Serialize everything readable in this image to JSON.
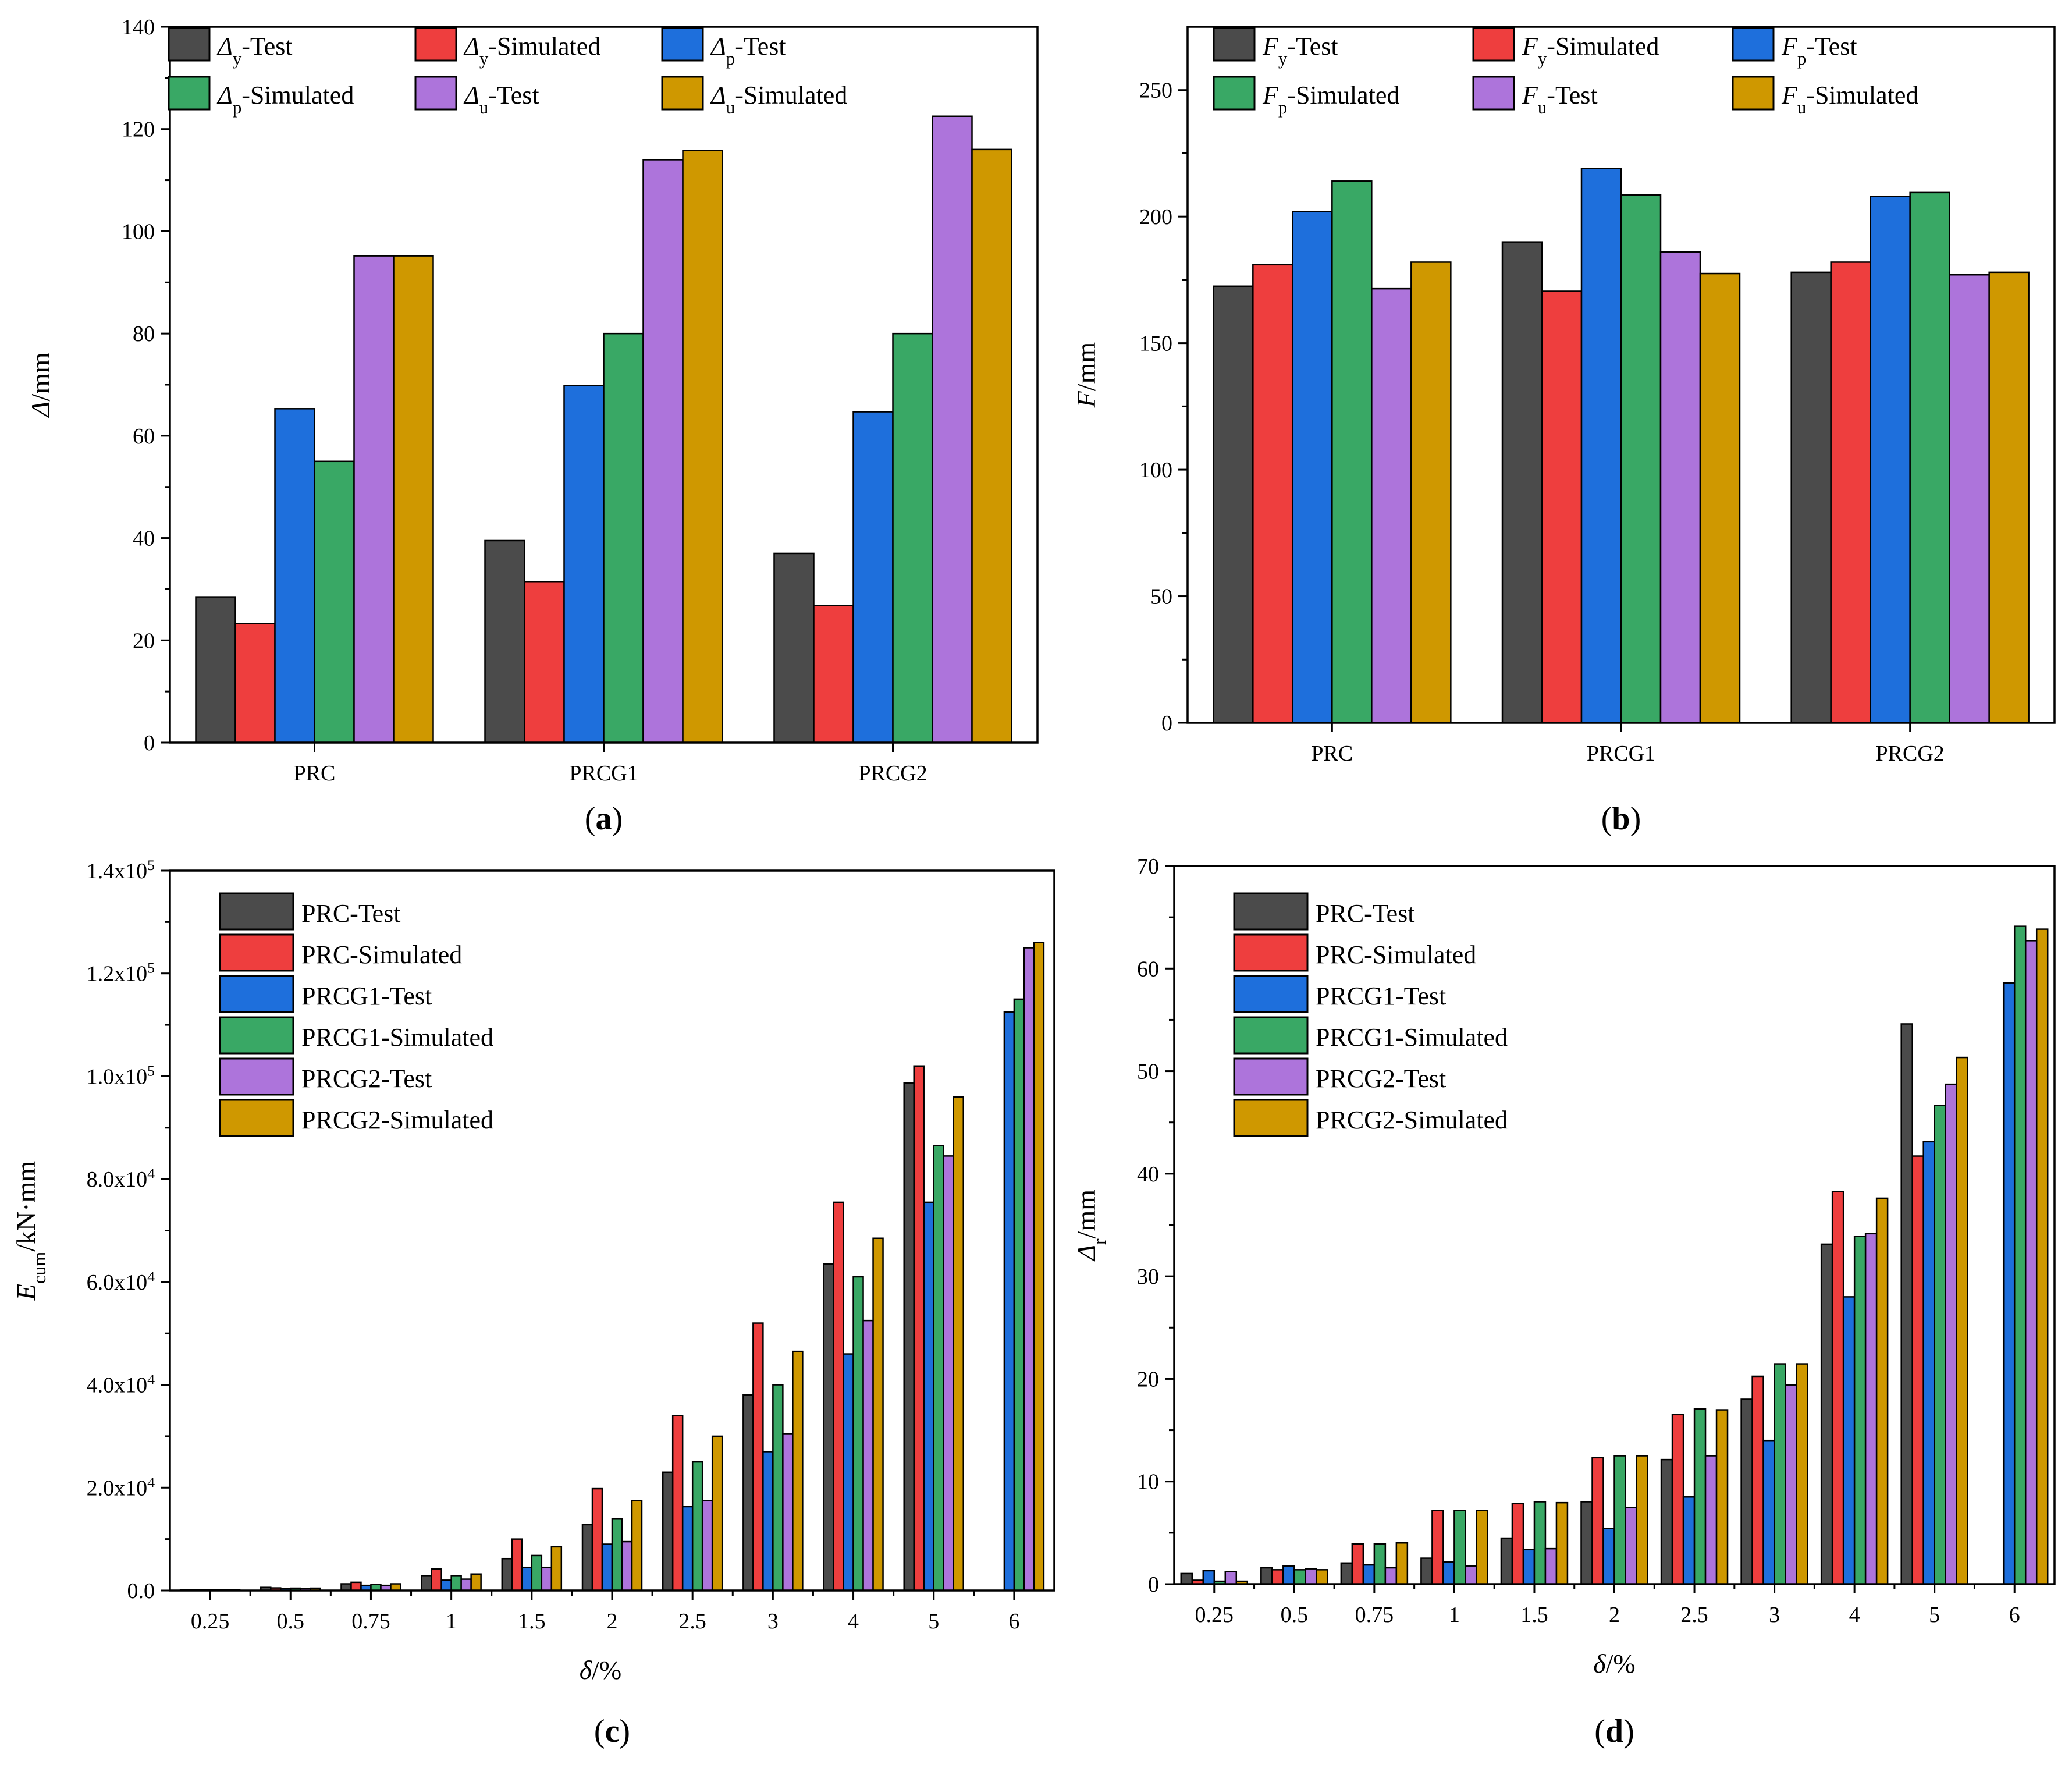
{
  "colors": {
    "dark": "#4b4b4b",
    "red": "#ee3e3e",
    "blue": "#1e6fdc",
    "green": "#39a865",
    "purple": "#ad74db",
    "gold": "#cf9800"
  },
  "chart_data": [
    {
      "type": "bar",
      "panel_label": "(a)",
      "ylabel": "Δ/mm",
      "ylim": [
        0,
        140
      ],
      "yticks": [
        "0",
        "20",
        "40",
        "60",
        "80",
        "100",
        "120",
        "140"
      ],
      "categories": [
        "PRC",
        "PRCG1",
        "PRCG2"
      ],
      "legend_position": "top",
      "series": [
        {
          "name": "Δy-Test",
          "values": [
            28.5,
            39.5,
            37
          ]
        },
        {
          "name": "Δy-Simulated",
          "values": [
            23.3,
            31.5,
            26.8
          ]
        },
        {
          "name": "Δp-Test",
          "values": [
            65.3,
            69.8,
            64.7
          ]
        },
        {
          "name": "Δp-Simulated",
          "values": [
            55,
            80,
            80
          ]
        },
        {
          "name": "Δu-Test",
          "values": [
            95.2,
            114,
            122.5
          ]
        },
        {
          "name": "Δu-Simulated",
          "values": [
            95.2,
            115.8,
            116
          ]
        }
      ]
    },
    {
      "type": "bar",
      "panel_label": "(b)",
      "ylabel": "F/mm",
      "ylim": [
        0,
        275
      ],
      "yticks": [
        "0",
        "50",
        "100",
        "150",
        "200",
        "250"
      ],
      "categories": [
        "PRC",
        "PRCG1",
        "PRCG2"
      ],
      "legend_position": "top",
      "series": [
        {
          "name": "Fy-Test",
          "values": [
            172.5,
            190,
            178
          ]
        },
        {
          "name": "Fy-Simulated",
          "values": [
            181,
            170.5,
            182
          ]
        },
        {
          "name": "Fp-Test",
          "values": [
            202,
            219,
            208
          ]
        },
        {
          "name": "Fp-Simulated",
          "values": [
            214,
            208.5,
            209.5
          ]
        },
        {
          "name": "Fu-Test",
          "values": [
            171.5,
            186,
            177
          ]
        },
        {
          "name": "Fu-Simulated",
          "values": [
            182,
            177.5,
            178
          ]
        }
      ]
    },
    {
      "type": "bar",
      "panel_label": "(c)",
      "xlabel": "δ/%",
      "ylabel": "Ecum/kN·mm",
      "ylim": [
        0,
        140000
      ],
      "yticks": [
        "0.0",
        "2.0x10^4",
        "4.0x10^4",
        "6.0x10^4",
        "8.0x10^4",
        "1.0x10^5",
        "1.2x10^5",
        "1.4x10^5"
      ],
      "categories": [
        "0.25",
        "0.5",
        "0.75",
        "1",
        "1.5",
        "2",
        "2.5",
        "3",
        "4",
        "5",
        "6"
      ],
      "legend_position": "top-left",
      "series": [
        {
          "name": "PRC-Test",
          "values": [
            150,
            600,
            1300,
            2900,
            6200,
            12800,
            23000,
            38000,
            63500,
            98700,
            null
          ]
        },
        {
          "name": "PRC-Simulated",
          "values": [
            150,
            500,
            1600,
            4200,
            10000,
            19800,
            34000,
            52000,
            75500,
            102000,
            null
          ]
        },
        {
          "name": "PRCG1-Test",
          "values": [
            100,
            350,
            1000,
            2000,
            4500,
            9000,
            16300,
            27000,
            46000,
            75500,
            112500
          ]
        },
        {
          "name": "PRCG1-Simulated",
          "values": [
            150,
            450,
            1200,
            2900,
            6800,
            14000,
            25000,
            40000,
            61000,
            86500,
            115000
          ]
        },
        {
          "name": "PRCG2-Test",
          "values": [
            120,
            400,
            1000,
            2200,
            4500,
            9500,
            17500,
            30500,
            52500,
            84500,
            125000
          ]
        },
        {
          "name": "PRCG2-Simulated",
          "values": [
            150,
            450,
            1300,
            3200,
            8500,
            17500,
            30000,
            46500,
            68500,
            96000,
            126000
          ]
        }
      ]
    },
    {
      "type": "bar",
      "panel_label": "(d)",
      "xlabel": "δ/%",
      "ylabel": "Δr/mm",
      "ylim": [
        0,
        75
      ],
      "yticks": [
        "0",
        "10",
        "20",
        "30",
        "40",
        "50",
        "60",
        "70"
      ],
      "categories": [
        "0.25",
        "0.5",
        "0.75",
        "1",
        "1.5",
        "2",
        "2.5",
        "3",
        "4",
        "5",
        "6"
      ],
      "legend_position": "top-left",
      "series": [
        {
          "name": "PRC-Test",
          "values": [
            1.1,
            1.7,
            2.2,
            2.7,
            4.8,
            8.6,
            13,
            19.3,
            35.5,
            58.5,
            null
          ]
        },
        {
          "name": "PRC-Simulated",
          "values": [
            0.4,
            1.5,
            4.2,
            7.7,
            8.4,
            13.2,
            17.7,
            21.7,
            41,
            44.7,
            null
          ]
        },
        {
          "name": "PRCG1-Test",
          "values": [
            1.4,
            1.9,
            2,
            2.3,
            3.6,
            5.8,
            9.1,
            15,
            30,
            46.2,
            62.8
          ]
        },
        {
          "name": "PRCG1-Simulated",
          "values": [
            0.3,
            1.5,
            4.2,
            7.7,
            8.6,
            13.4,
            18.3,
            23,
            36.3,
            50,
            68.7
          ]
        },
        {
          "name": "PRCG2-Test",
          "values": [
            1.3,
            1.6,
            1.7,
            1.9,
            3.7,
            8,
            13.4,
            20.8,
            36.6,
            52.2,
            67.2
          ]
        },
        {
          "name": "PRCG2-Simulated",
          "values": [
            0.3,
            1.5,
            4.3,
            7.7,
            8.5,
            13.4,
            18.2,
            23,
            40.3,
            55,
            68.4
          ]
        }
      ]
    }
  ]
}
